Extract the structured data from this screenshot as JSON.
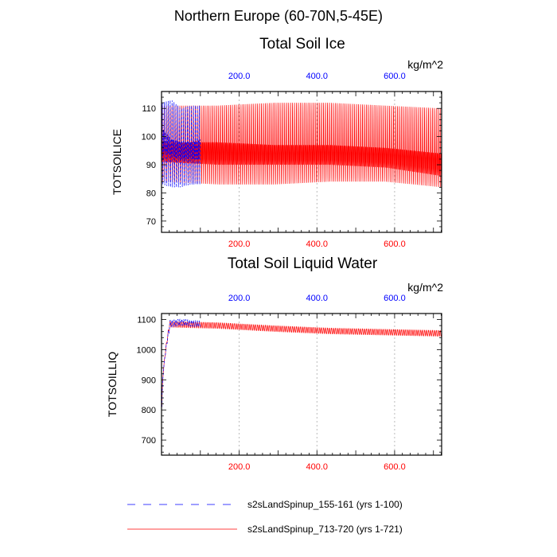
{
  "figure": {
    "title": "Northern Europe (60-70N,5-45E)"
  },
  "chart_data": [
    {
      "type": "line",
      "title": "Total Soil Ice",
      "ylabel": "TOTSOILICE",
      "units": "kg/m^2",
      "xlim": [
        0,
        721
      ],
      "ylim": [
        66,
        116
      ],
      "yticks": [
        70,
        80,
        90,
        100,
        110
      ],
      "xticks": [
        200,
        400,
        600
      ],
      "xtick_labels": [
        "200.0",
        "400.0",
        "600.0"
      ],
      "grid": "vertical dotted at x ticks",
      "series": [
        {
          "name": "s2sLandSpinup_155-161 (yrs 1-100)",
          "color": "#0000ff",
          "dash": "dashed",
          "x_range": [
            1,
            100
          ],
          "period": 5,
          "low": [
            83,
            82,
            82,
            83,
            83
          ],
          "high": [
            112,
            113,
            110,
            111,
            111
          ],
          "low2": [
            95,
            93,
            92,
            92,
            92
          ],
          "high2": [
            103,
            99,
            98,
            98,
            99
          ]
        },
        {
          "name": "s2sLandSpinup_713-720 (yrs 1-721)",
          "color": "#ff0000",
          "dash": "solid",
          "x_range": [
            1,
            721
          ],
          "period": 5,
          "low": [
            84,
            83,
            83,
            84,
            84,
            82
          ],
          "high": [
            111,
            111,
            112,
            112,
            111,
            110
          ],
          "low2": [
            91,
            90,
            90,
            90,
            89,
            86
          ],
          "high2": [
            98,
            98,
            97,
            97,
            96,
            94
          ]
        }
      ]
    },
    {
      "type": "line",
      "title": "Total Soil Liquid Water",
      "ylabel": "TOTSOILLIQ",
      "units": "kg/m^2",
      "xlim": [
        0,
        721
      ],
      "ylim": [
        650,
        1120
      ],
      "yticks": [
        700,
        800,
        900,
        1000,
        1100
      ],
      "xticks": [
        200,
        400,
        600
      ],
      "xtick_labels": [
        "200.0",
        "400.0",
        "600.0"
      ],
      "grid": "vertical dotted at x ticks",
      "series": [
        {
          "name": "s2sLandSpinup_155-161 (yrs 1-100)",
          "color": "#0000ff",
          "dash": "dashed",
          "x_range": [
            1,
            100
          ],
          "period": 5,
          "start": 810,
          "rise_end": 20,
          "low": [
            1070,
            1080,
            1075
          ],
          "high": [
            1095,
            1102,
            1095
          ]
        },
        {
          "name": "s2sLandSpinup_713-720 (yrs 1-721)",
          "color": "#ff0000",
          "dash": "solid",
          "x_range": [
            1,
            721
          ],
          "period": 5,
          "start": 810,
          "rise_end": 20,
          "low": [
            1075,
            1070,
            1060,
            1052,
            1048,
            1044
          ],
          "high": [
            1095,
            1090,
            1080,
            1072,
            1068,
            1064
          ]
        }
      ]
    }
  ]
}
